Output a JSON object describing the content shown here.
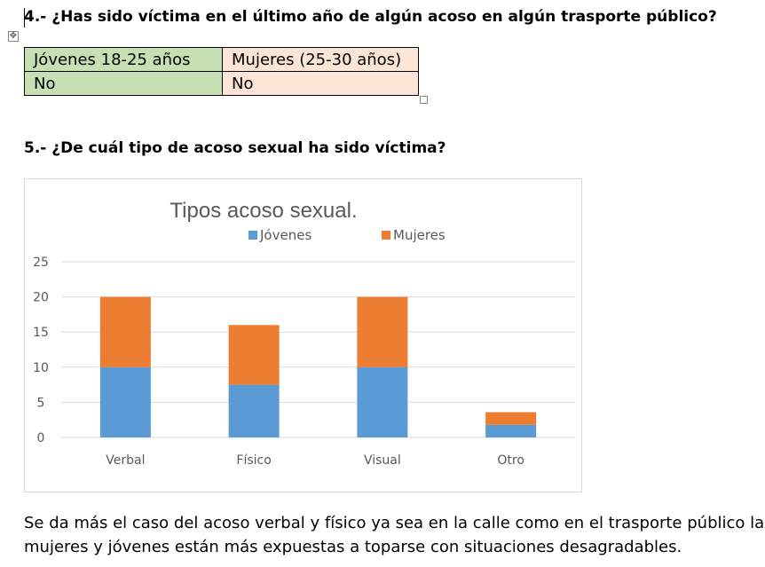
{
  "question4": {
    "title": "4.- ¿Has sido víctima en el último año de algún acoso en algún trasporte público?"
  },
  "table": {
    "headers": [
      "Jóvenes 18-25 años",
      "Mujeres (25-30 años)"
    ],
    "row": [
      "No",
      "No"
    ]
  },
  "question5": {
    "title": "5.- ¿De cuál tipo de acoso sexual ha sido víctima?"
  },
  "chart_data": {
    "type": "bar",
    "stacked": true,
    "title": "Tipos acoso sexual.",
    "categories": [
      "Verbal",
      "Físico",
      "Visual",
      "Otro"
    ],
    "series": [
      {
        "name": "Jóvenes",
        "values": [
          10,
          7.5,
          10,
          1.8
        ],
        "color": "#5b9bd5"
      },
      {
        "name": "Mujeres",
        "values": [
          10,
          8.5,
          10,
          1.8
        ],
        "color": "#ed7d31"
      }
    ],
    "yticks": [
      0,
      5,
      10,
      15,
      20,
      25
    ],
    "ylim": [
      0,
      25
    ],
    "grid": true,
    "legend": "top"
  },
  "paragraph": {
    "line1": "Se da más el caso del acoso verbal y físico ya sea en la calle como en el trasporte público las",
    "line2": "mujeres y jóvenes están más expuestas a toparse con situaciones desagradables."
  }
}
